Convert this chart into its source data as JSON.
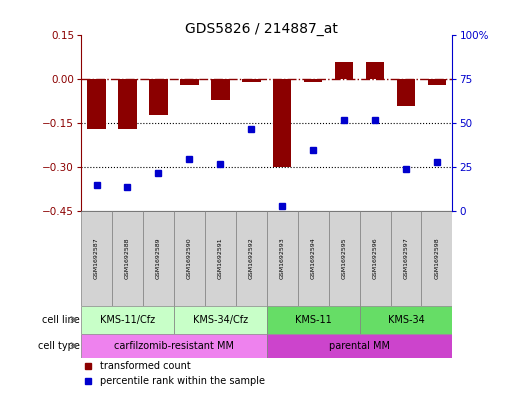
{
  "title": "GDS5826 / 214887_at",
  "samples": [
    "GSM1692587",
    "GSM1692588",
    "GSM1692589",
    "GSM1692590",
    "GSM1692591",
    "GSM1692592",
    "GSM1692593",
    "GSM1692594",
    "GSM1692595",
    "GSM1692596",
    "GSM1692597",
    "GSM1692598"
  ],
  "bar_values": [
    -0.17,
    -0.17,
    -0.12,
    -0.02,
    -0.07,
    -0.01,
    -0.3,
    -0.01,
    0.06,
    0.06,
    -0.09,
    -0.02
  ],
  "blue_values": [
    15,
    14,
    22,
    30,
    27,
    47,
    3,
    35,
    52,
    52,
    24,
    28
  ],
  "bar_color": "#8B0000",
  "blue_color": "#0000CD",
  "ylim_left": [
    -0.45,
    0.15
  ],
  "ylim_right": [
    0,
    100
  ],
  "yticks_left": [
    0.15,
    0.0,
    -0.15,
    -0.3,
    -0.45
  ],
  "yticks_right": [
    100,
    75,
    50,
    25,
    0
  ],
  "dotted_lines": [
    -0.15,
    -0.3
  ],
  "cell_lines": [
    {
      "label": "KMS-11/Cfz",
      "start": 0,
      "end": 3,
      "color": "#c8ffc8"
    },
    {
      "label": "KMS-34/Cfz",
      "start": 3,
      "end": 6,
      "color": "#c8ffc8"
    },
    {
      "label": "KMS-11",
      "start": 6,
      "end": 9,
      "color": "#66dd66"
    },
    {
      "label": "KMS-34",
      "start": 9,
      "end": 12,
      "color": "#66dd66"
    }
  ],
  "cell_types": [
    {
      "label": "carfilzomib-resistant MM",
      "start": 0,
      "end": 6,
      "color": "#ee82ee"
    },
    {
      "label": "parental MM",
      "start": 6,
      "end": 12,
      "color": "#cc44cc"
    }
  ],
  "cell_line_label": "cell line",
  "cell_type_label": "cell type",
  "legend_bar_label": "transformed count",
  "legend_blue_label": "percentile rank within the sample"
}
